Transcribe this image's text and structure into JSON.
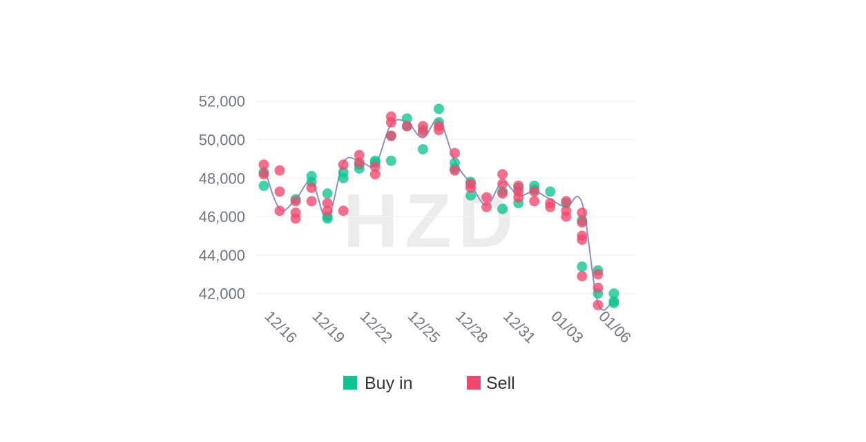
{
  "watermark": "HZD",
  "colors": {
    "buy": "#10c391",
    "sell": "#f0486c",
    "line": "#8d8fc9",
    "grid": "#f2f3f5",
    "tick": "#6f7482"
  },
  "legend": {
    "placement": "bottom-center",
    "items": [
      {
        "label": "Buy in",
        "color": "#10c391"
      },
      {
        "label": "Sell",
        "color": "#f0486c"
      }
    ]
  },
  "chart_data": {
    "type": "scatter",
    "xlabel": "",
    "ylabel": "",
    "x_tick_labels": [
      "12/16",
      "12/19",
      "12/22",
      "12/25",
      "12/28",
      "12/31",
      "01/03",
      "01/06"
    ],
    "x_tick_days": [
      0,
      3,
      6,
      9,
      12,
      15,
      18,
      21
    ],
    "xlim": [
      0,
      23
    ],
    "y_ticks": [
      42000,
      44000,
      46000,
      48000,
      50000,
      52000
    ],
    "y_tick_labels": [
      "42,000",
      "44,000",
      "46,000",
      "48,000",
      "50,000",
      "52,000"
    ],
    "ylim": [
      41200,
      52600
    ],
    "grid": true,
    "trend_line": {
      "x": [
        0,
        1,
        2,
        3,
        4,
        5,
        6,
        7,
        8,
        9,
        10,
        11,
        12,
        13,
        14,
        15,
        16,
        17,
        18,
        19,
        20,
        21,
        22
      ],
      "y": [
        48600,
        46400,
        46900,
        47800,
        45900,
        48800,
        48900,
        48700,
        50800,
        50900,
        50100,
        51000,
        48900,
        47700,
        46600,
        47800,
        47100,
        47300,
        46900,
        46500,
        46700,
        41500,
        41700
      ]
    },
    "series": [
      {
        "name": "Buy in",
        "points": [
          [
            0,
            48300
          ],
          [
            0,
            47600
          ],
          [
            2,
            46900
          ],
          [
            3,
            48100
          ],
          [
            3,
            47800
          ],
          [
            4,
            47200
          ],
          [
            4,
            45900
          ],
          [
            4,
            46000
          ],
          [
            5,
            48300
          ],
          [
            5,
            48000
          ],
          [
            6,
            48500
          ],
          [
            6,
            48700
          ],
          [
            7,
            48900
          ],
          [
            7,
            48800
          ],
          [
            8,
            50200
          ],
          [
            8,
            48900
          ],
          [
            9,
            51100
          ],
          [
            9,
            50700
          ],
          [
            10,
            49500
          ],
          [
            10,
            50500
          ],
          [
            11,
            51600
          ],
          [
            11,
            50900
          ],
          [
            12,
            48800
          ],
          [
            12,
            48500
          ],
          [
            13,
            47800
          ],
          [
            13,
            47100
          ],
          [
            15,
            47300
          ],
          [
            15,
            46400
          ],
          [
            16,
            47500
          ],
          [
            16,
            46700
          ],
          [
            17,
            47600
          ],
          [
            17,
            47400
          ],
          [
            18,
            47300
          ],
          [
            19,
            46700
          ],
          [
            20,
            45800
          ],
          [
            20,
            43400
          ],
          [
            21,
            43200
          ],
          [
            21,
            42000
          ],
          [
            22,
            42000
          ],
          [
            22,
            41600
          ],
          [
            22,
            41500
          ]
        ]
      },
      {
        "name": "Sell",
        "points": [
          [
            0,
            48700
          ],
          [
            0,
            48200
          ],
          [
            1,
            48400
          ],
          [
            1,
            47300
          ],
          [
            1,
            46300
          ],
          [
            2,
            46800
          ],
          [
            2,
            46200
          ],
          [
            2,
            45900
          ],
          [
            3,
            47500
          ],
          [
            3,
            46800
          ],
          [
            4,
            46700
          ],
          [
            4,
            46300
          ],
          [
            5,
            48700
          ],
          [
            5,
            46300
          ],
          [
            6,
            49200
          ],
          [
            6,
            48800
          ],
          [
            7,
            48600
          ],
          [
            7,
            48200
          ],
          [
            8,
            51200
          ],
          [
            8,
            50900
          ],
          [
            8,
            50200
          ],
          [
            9,
            50700
          ],
          [
            10,
            50700
          ],
          [
            10,
            50400
          ],
          [
            11,
            50700
          ],
          [
            11,
            50500
          ],
          [
            12,
            49300
          ],
          [
            12,
            48400
          ],
          [
            13,
            47700
          ],
          [
            13,
            47500
          ],
          [
            14,
            47000
          ],
          [
            14,
            46500
          ],
          [
            15,
            48200
          ],
          [
            15,
            47700
          ],
          [
            15,
            47200
          ],
          [
            16,
            47600
          ],
          [
            16,
            47000
          ],
          [
            16,
            47300
          ],
          [
            17,
            47300
          ],
          [
            17,
            46800
          ],
          [
            18,
            46500
          ],
          [
            18,
            46700
          ],
          [
            19,
            46800
          ],
          [
            19,
            46300
          ],
          [
            19,
            46000
          ],
          [
            20,
            46200
          ],
          [
            20,
            45700
          ],
          [
            20,
            45000
          ],
          [
            20,
            44800
          ],
          [
            20,
            42900
          ],
          [
            21,
            43000
          ],
          [
            21,
            42300
          ],
          [
            21,
            41400
          ]
        ]
      }
    ]
  }
}
